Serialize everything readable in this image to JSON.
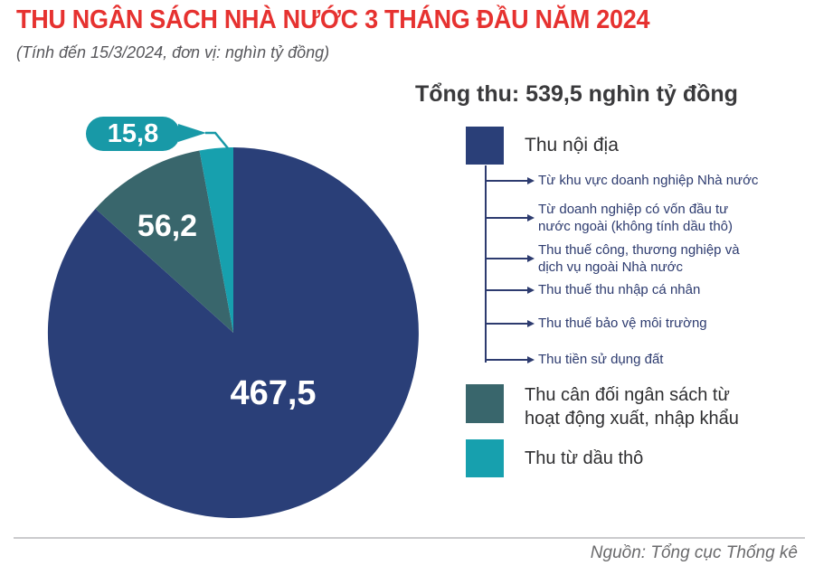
{
  "header": {
    "title": "THU NGÂN SÁCH NHÀ NƯỚC 3 THÁNG ĐẦU NĂM 2024",
    "subtitle": "(Tính đến 15/3/2024, đơn vị: nghìn tỷ đồng)"
  },
  "total_label": "Tổng thu: 539,5 nghìn tỷ đồng",
  "chart_data": {
    "type": "pie",
    "title": "Thu ngân sách nhà nước 3 tháng đầu năm 2024",
    "unit": "nghìn tỷ đồng",
    "total": 539.5,
    "start_angle_deg": 0,
    "direction": "clockwise",
    "legend_position": "right",
    "slices": [
      {
        "label": "Thu nội địa",
        "value": 467.5,
        "display": "467,5",
        "color": "#2a3f78"
      },
      {
        "label": "Thu cân đối ngân sách từ hoạt động xuất, nhập khẩu",
        "value": 56.2,
        "display": "56,2",
        "color": "#39666c"
      },
      {
        "label": "Thu từ dầu thô",
        "value": 15.8,
        "display": "15,8",
        "color": "#17a0ae"
      }
    ]
  },
  "legend": {
    "items": [
      {
        "label": "Thu nội địa",
        "color": "#2a3f78",
        "sub_items": [
          "Từ khu vực doanh nghiệp Nhà nước",
          "Từ doanh nghiệp có vốn đầu tư nước ngoài (không tính dầu thô)",
          "Thu thuế công, thương nghiệp và dịch vụ ngoài Nhà nước",
          "Thu thuế thu nhập cá nhân",
          "Thu thuế bảo vệ môi trường",
          "Thu tiền sử dụng đất"
        ]
      },
      {
        "label": "Thu cân đối ngân sách từ hoạt động xuất, nhập khẩu",
        "color": "#39666c"
      },
      {
        "label": "Thu từ dầu thô",
        "color": "#17a0ae"
      }
    ]
  },
  "theme": {
    "accent_red": "#e63230",
    "navy": "#2a3f78",
    "dark_teal": "#39666c",
    "teal": "#17a0ae",
    "callout_bg": "#1899a7"
  },
  "footer": {
    "source": "Nguồn: Tổng cục Thống kê"
  }
}
